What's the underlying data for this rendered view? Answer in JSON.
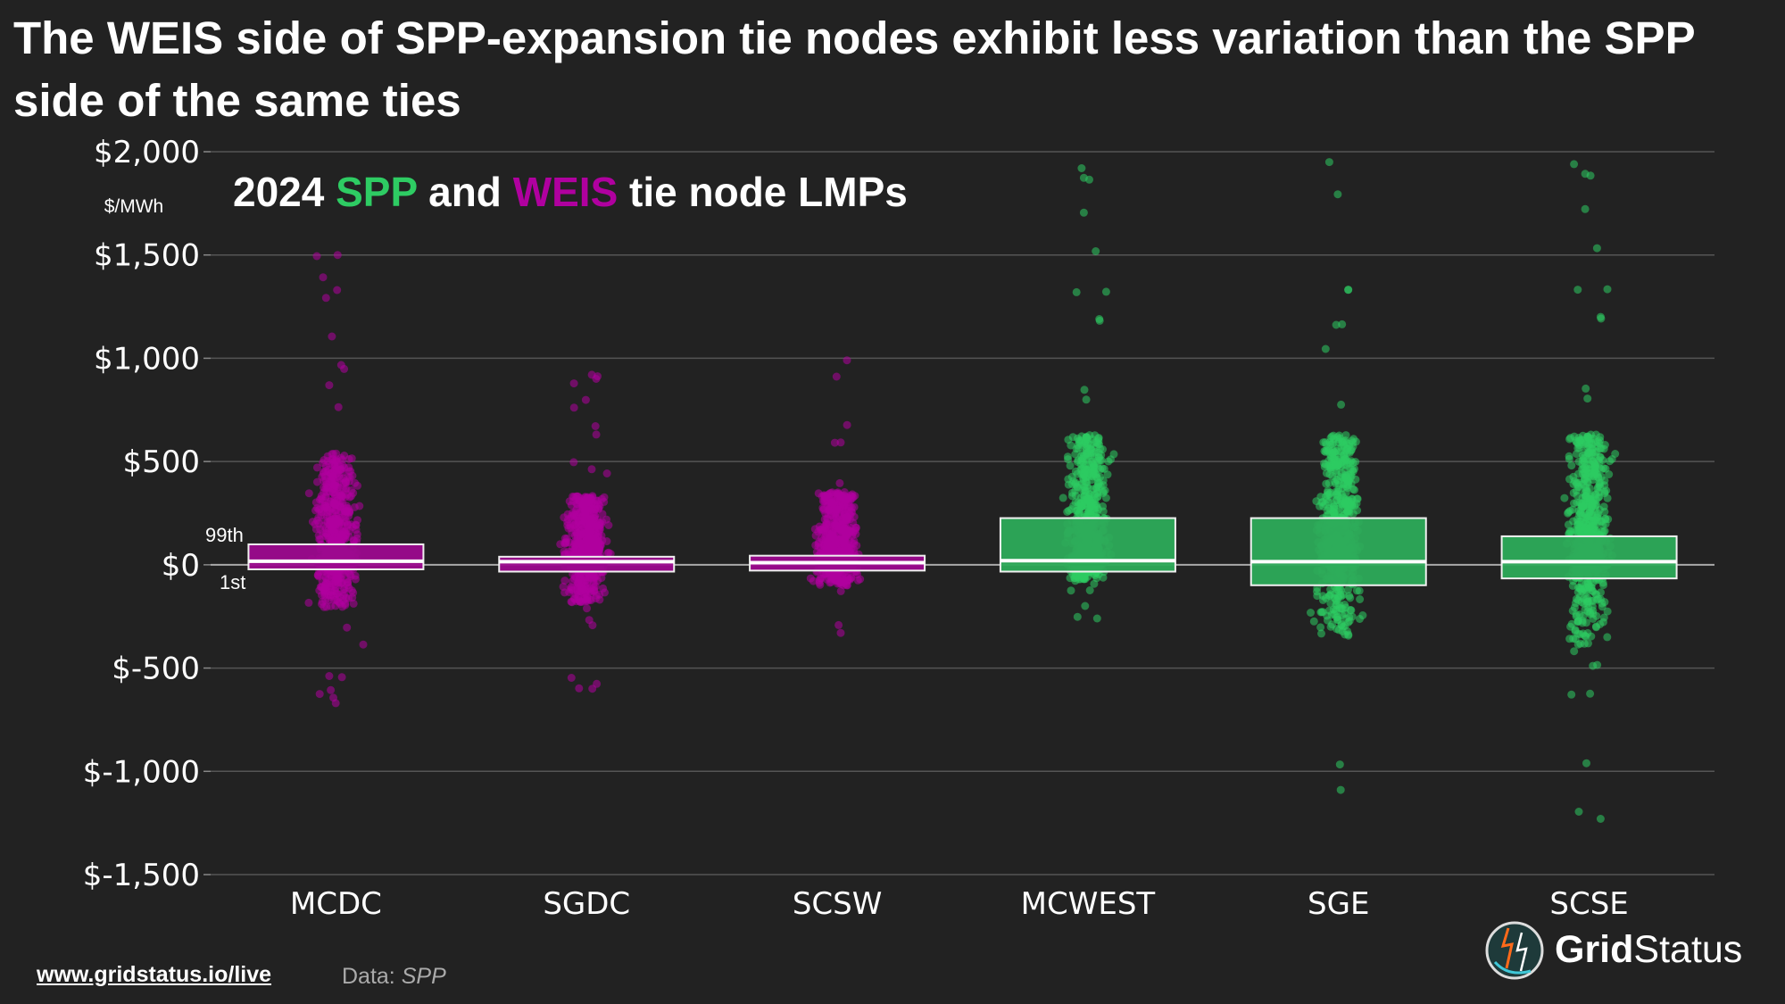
{
  "title": "The WEIS side of SPP-expansion tie nodes exhibit less variation than the SPP side of the same ties",
  "footer": {
    "link": "www.gridstatus.io/live",
    "source_label": "Data:",
    "source": "SPP"
  },
  "logo": {
    "word1": "Grid",
    "word2": "Status"
  },
  "colors": {
    "background": "#222222",
    "weis": "#b0009f",
    "weis_box": "#9c0a8e",
    "spp": "#2ecc63",
    "spp_box": "#2dab5a",
    "grid": "#555555"
  },
  "chart_data": {
    "type": "box-strip",
    "subtitle": {
      "prefix": "2024",
      "spp": "SPP",
      "middle": "and",
      "weis": "WEIS",
      "suffix": "tie node LMPs"
    },
    "ylabel": "$/MWh",
    "ylim": [
      -1500,
      2000
    ],
    "yticks": [
      2000,
      1500,
      1000,
      500,
      0,
      -500,
      -1000,
      -1500
    ],
    "ytick_labels": [
      "$2,000",
      "$1,500",
      "$1,000",
      "$500",
      "$0",
      "$-500",
      "$-1,000",
      "$-1,500"
    ],
    "grid": true,
    "box_annotations": {
      "upper": "99th",
      "lower": "1st"
    },
    "categories": [
      "MCDC",
      "SGDC",
      "SCSW",
      "MCWEST",
      "SGE",
      "SCSE"
    ],
    "series": [
      {
        "category": "MCDC",
        "side": "WEIS",
        "p1": -22,
        "median": 17,
        "p99": 99,
        "min": -670,
        "max": 1500
      },
      {
        "category": "SGDC",
        "side": "WEIS",
        "p1": -33,
        "median": 15,
        "p99": 39,
        "min": -600,
        "max": 920
      },
      {
        "category": "SCSW",
        "side": "WEIS",
        "p1": -28,
        "median": 10,
        "p99": 44,
        "min": -330,
        "max": 990
      },
      {
        "category": "MCWEST",
        "side": "SPP",
        "p1": -33,
        "median": 20,
        "p99": 226,
        "min": -260,
        "max": 1920
      },
      {
        "category": "SGE",
        "side": "SPP",
        "p1": -99,
        "median": 15,
        "p99": 226,
        "min": -1090,
        "max": 1950
      },
      {
        "category": "SCSE",
        "side": "SPP",
        "p1": -66,
        "median": 15,
        "p99": 138,
        "min": -1230,
        "max": 1940
      }
    ]
  }
}
